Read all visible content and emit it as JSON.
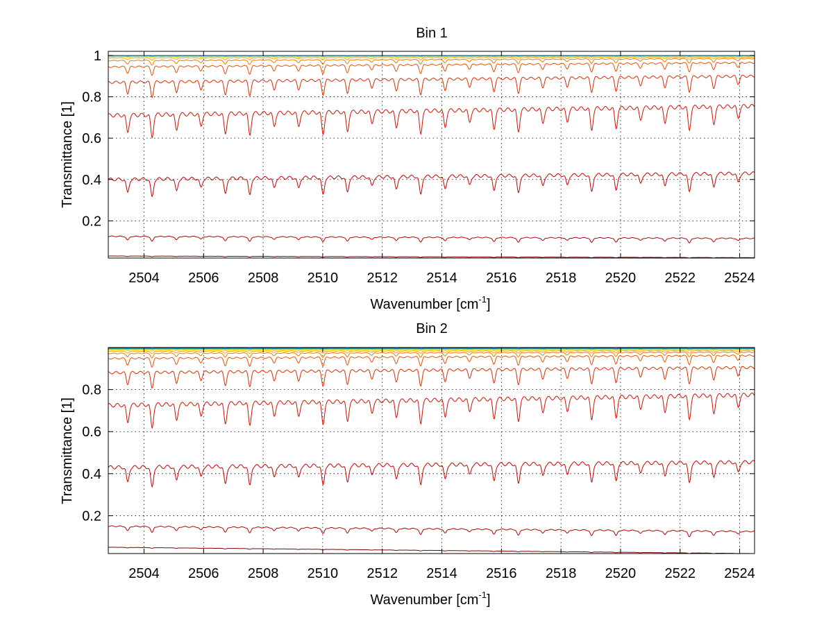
{
  "chart_data": [
    {
      "type": "line",
      "title": "Bin 1",
      "xlabel": "Wavenumber [cm",
      "xlabel_sup": "-1",
      "xlabel_tail": "]",
      "ylabel": "Transmittance [1]",
      "xlim": [
        2502.8,
        2524.5
      ],
      "ylim": [
        0.02,
        1.02
      ],
      "xticks": [
        2504,
        2506,
        2508,
        2510,
        2512,
        2514,
        2516,
        2518,
        2520,
        2522,
        2524
      ],
      "xtick_labels": [
        "2504",
        "2506",
        "2508",
        "2510",
        "2512",
        "2514",
        "2516",
        "2518",
        "2520",
        "2522",
        "2524"
      ],
      "yticks": [
        0.2,
        0.4,
        0.6,
        0.8,
        1.0
      ],
      "ytick_labels": [
        "0.2",
        "0.4",
        "0.6",
        "0.8",
        "1"
      ],
      "grid": true,
      "legend": "none",
      "series": [
        {
          "color": "#7a0000",
          "start": 0.03,
          "end": 0.022,
          "depth": 0.003
        },
        {
          "color": "#b00000",
          "start": 0.125,
          "end": 0.115,
          "depth": 0.025
        },
        {
          "color": "#c40000",
          "start": 0.4,
          "end": 0.43,
          "depth": 0.09
        },
        {
          "color": "#d01000",
          "start": 0.71,
          "end": 0.755,
          "depth": 0.11
        },
        {
          "color": "#dc2a00",
          "start": 0.87,
          "end": 0.9,
          "depth": 0.07
        },
        {
          "color": "#e85000",
          "start": 0.945,
          "end": 0.965,
          "depth": 0.04
        },
        {
          "color": "#f07a00",
          "start": 0.975,
          "end": 0.985,
          "depth": 0.022
        },
        {
          "color": "#f5a800",
          "start": 0.988,
          "end": 0.992,
          "depth": 0.012
        },
        {
          "color": "#e8d000",
          "start": 0.994,
          "end": 0.996,
          "depth": 0.006
        },
        {
          "color": "#9ad040",
          "start": 0.997,
          "end": 0.998,
          "depth": 0.003
        },
        {
          "color": "#30c0c0",
          "start": 0.999,
          "end": 0.999,
          "depth": 0.002
        },
        {
          "color": "#1050a0",
          "start": 1.0,
          "end": 1.0,
          "depth": 0.001
        }
      ]
    },
    {
      "type": "line",
      "title": "Bin 2",
      "xlabel": "Wavenumber [cm",
      "xlabel_sup": "-1",
      "xlabel_tail": "]",
      "ylabel": "Transmittance [1]",
      "xlim": [
        2502.8,
        2524.5
      ],
      "ylim": [
        0.02,
        1.0
      ],
      "xticks": [
        2504,
        2506,
        2508,
        2510,
        2512,
        2514,
        2516,
        2518,
        2520,
        2522,
        2524
      ],
      "xtick_labels": [
        "2504",
        "2506",
        "2508",
        "2510",
        "2512",
        "2514",
        "2516",
        "2518",
        "2520",
        "2522",
        "2524"
      ],
      "yticks": [
        0.2,
        0.4,
        0.6,
        0.8
      ],
      "ytick_labels": [
        "0.2",
        "0.4",
        "0.6",
        "0.8"
      ],
      "grid": true,
      "legend": "none",
      "series": [
        {
          "color": "#7a0000",
          "start": 0.05,
          "end": 0.02,
          "depth": 0.003
        },
        {
          "color": "#b00000",
          "start": 0.15,
          "end": 0.125,
          "depth": 0.03
        },
        {
          "color": "#c40000",
          "start": 0.43,
          "end": 0.455,
          "depth": 0.1
        },
        {
          "color": "#d01000",
          "start": 0.725,
          "end": 0.775,
          "depth": 0.11
        },
        {
          "color": "#dc2a00",
          "start": 0.88,
          "end": 0.905,
          "depth": 0.07
        },
        {
          "color": "#e85000",
          "start": 0.948,
          "end": 0.962,
          "depth": 0.04
        },
        {
          "color": "#f07a00",
          "start": 0.972,
          "end": 0.978,
          "depth": 0.022
        },
        {
          "color": "#f5a800",
          "start": 0.982,
          "end": 0.985,
          "depth": 0.012
        },
        {
          "color": "#e8d000",
          "start": 0.988,
          "end": 0.99,
          "depth": 0.006
        },
        {
          "color": "#9ad040",
          "start": 0.992,
          "end": 0.993,
          "depth": 0.003
        },
        {
          "color": "#30c0c0",
          "start": 0.995,
          "end": 0.995,
          "depth": 0.002
        },
        {
          "color": "#1050a0",
          "start": 0.997,
          "end": 0.997,
          "depth": 0.001
        }
      ]
    }
  ]
}
